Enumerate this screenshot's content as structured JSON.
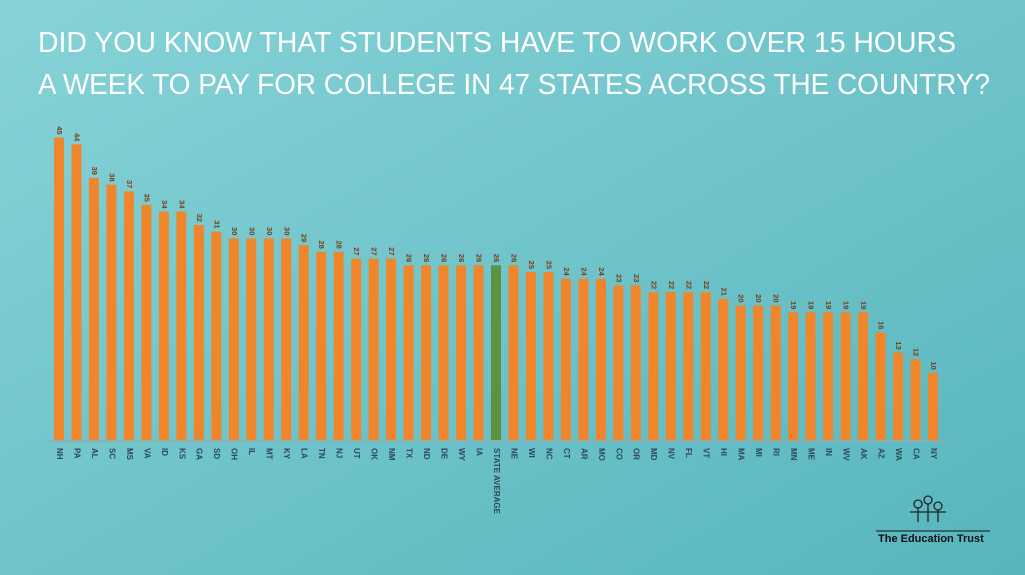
{
  "chart_data": {
    "type": "bar",
    "title": [
      "DID YOU KNOW THAT STUDENTS HAVE TO WORK OVER 15 HOURS",
      "A WEEK TO PAY FOR COLLEGE IN 47 STATES ACROSS THE COUNTRY?"
    ],
    "categories": [
      "NH",
      "PA",
      "AL",
      "SC",
      "MS",
      "VA",
      "ID",
      "KS",
      "GA",
      "SD",
      "OH",
      "IL",
      "MT",
      "KY",
      "LA",
      "TN",
      "NJ",
      "UT",
      "OK",
      "NM",
      "TX",
      "ND",
      "DE",
      "WY",
      "IA",
      "STATE AVERAGE",
      "NE",
      "WI",
      "NC",
      "CT",
      "AR",
      "MO",
      "CO",
      "OR",
      "MD",
      "NV",
      "FL",
      "VT",
      "HI",
      "MA",
      "MI",
      "RI",
      "MN",
      "ME",
      "IN",
      "WV",
      "AK",
      "AZ",
      "WA",
      "CA",
      "NY"
    ],
    "values": [
      45,
      44,
      39,
      38,
      37,
      35,
      34,
      34,
      32,
      31,
      30,
      30,
      30,
      30,
      29,
      28,
      28,
      27,
      27,
      27,
      26,
      26,
      26,
      26,
      26,
      26,
      26,
      25,
      25,
      24,
      24,
      24,
      23,
      23,
      22,
      22,
      22,
      22,
      21,
      20,
      20,
      20,
      19,
      19,
      19,
      19,
      19,
      16,
      13,
      12,
      10
    ],
    "colors": [
      "#f0862b",
      "#f0862b",
      "#f0862b",
      "#f0862b",
      "#f0862b",
      "#f0862b",
      "#f0862b",
      "#f0862b",
      "#f0862b",
      "#f0862b",
      "#f0862b",
      "#f0862b",
      "#f0862b",
      "#f0862b",
      "#f0862b",
      "#f0862b",
      "#f0862b",
      "#f0862b",
      "#f0862b",
      "#f0862b",
      "#f0862b",
      "#f0862b",
      "#f0862b",
      "#f0862b",
      "#f0862b",
      "#5e9140",
      "#f0862b",
      "#f0862b",
      "#f0862b",
      "#f0862b",
      "#f0862b",
      "#f0862b",
      "#f0862b",
      "#f0862b",
      "#f0862b",
      "#f0862b",
      "#f0862b",
      "#f0862b",
      "#f0862b",
      "#f0862b",
      "#f0862b",
      "#f0862b",
      "#f0862b",
      "#f0862b",
      "#f0862b",
      "#f0862b",
      "#f0862b",
      "#f0862b",
      "#f0862b",
      "#f0862b",
      "#f0862b"
    ],
    "logo": "The Education Trust"
  }
}
